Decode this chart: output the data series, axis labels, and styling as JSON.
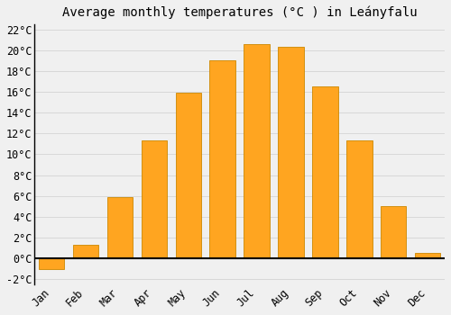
{
  "months": [
    "Jan",
    "Feb",
    "Mar",
    "Apr",
    "May",
    "Jun",
    "Jul",
    "Aug",
    "Sep",
    "Oct",
    "Nov",
    "Dec"
  ],
  "values": [
    -1.0,
    1.3,
    5.9,
    11.3,
    15.9,
    19.0,
    20.6,
    20.3,
    16.5,
    11.3,
    5.0,
    0.5
  ],
  "bar_color": "#FFA520",
  "bar_edge_color": "#CC8800",
  "title": "Average monthly temperatures (°C ) in Leányfalu",
  "ylim": [
    -2.5,
    22.5
  ],
  "yticks": [
    -2,
    0,
    2,
    4,
    6,
    8,
    10,
    12,
    14,
    16,
    18,
    20,
    22
  ],
  "background_color": "#f0f0f0",
  "grid_color": "#d8d8d8",
  "title_fontsize": 10,
  "tick_fontsize": 8.5,
  "font_family": "monospace",
  "bar_width": 0.75
}
